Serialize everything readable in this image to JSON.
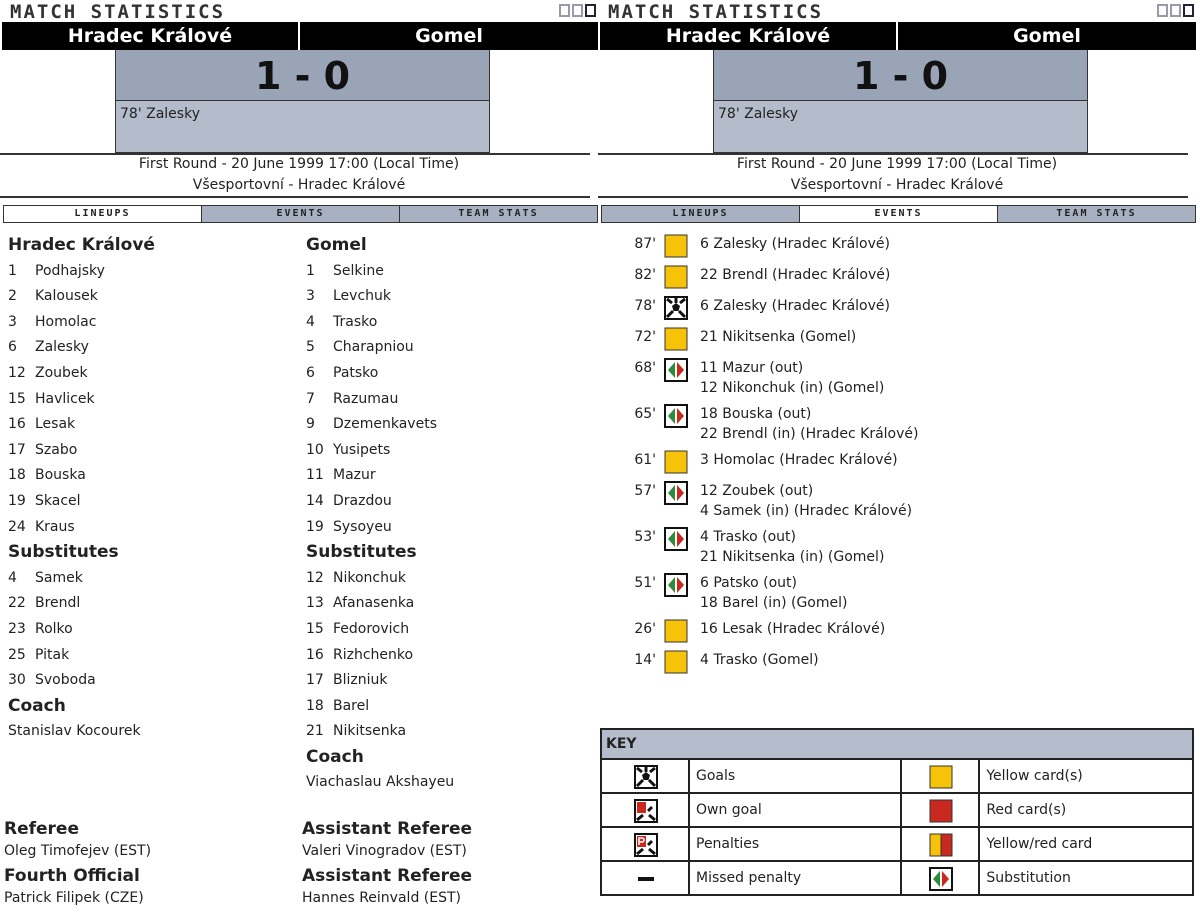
{
  "header": {
    "title": "MATCH STATISTICS",
    "home": "Hradec Králové",
    "away": "Gomel",
    "score": "1 - 0",
    "scorers": "78' Zalesky",
    "round": "First Round - 20 June 1999 17:00 (Local Time)",
    "venue": "Všesportovní - Hradec Králové"
  },
  "tabs": [
    "LINEUPS",
    "EVENTS",
    "TEAM STATS"
  ],
  "lineups": {
    "home": {
      "team": "Hradec Králové",
      "players": [
        [
          "1",
          "Podhajsky"
        ],
        [
          "2",
          "Kalousek"
        ],
        [
          "3",
          "Homolac"
        ],
        [
          "6",
          "Zalesky"
        ],
        [
          "12",
          "Zoubek"
        ],
        [
          "15",
          "Havlicek"
        ],
        [
          "16",
          "Lesak"
        ],
        [
          "17",
          "Szabo"
        ],
        [
          "18",
          "Bouska"
        ],
        [
          "19",
          "Skacel"
        ],
        [
          "24",
          "Kraus"
        ]
      ],
      "subs_label": "Substitutes",
      "subs": [
        [
          "4",
          "Samek"
        ],
        [
          "22",
          "Brendl"
        ],
        [
          "23",
          "Rolko"
        ],
        [
          "25",
          "Pitak"
        ],
        [
          "30",
          "Svoboda"
        ]
      ],
      "coach_label": "Coach",
      "coach": "Stanislav Kocourek"
    },
    "away": {
      "team": "Gomel",
      "players": [
        [
          "1",
          "Selkine"
        ],
        [
          "3",
          "Levchuk"
        ],
        [
          "4",
          "Trasko"
        ],
        [
          "5",
          "Charapniou"
        ],
        [
          "6",
          "Patsko"
        ],
        [
          "7",
          "Razumau"
        ],
        [
          "9",
          "Dzemenkavets"
        ],
        [
          "10",
          "Yusipets"
        ],
        [
          "11",
          "Mazur"
        ],
        [
          "14",
          "Drazdou"
        ],
        [
          "19",
          "Sysoyeu"
        ]
      ],
      "subs_label": "Substitutes",
      "subs": [
        [
          "12",
          "Nikonchuk"
        ],
        [
          "13",
          "Afanasenka"
        ],
        [
          "15",
          "Fedorovich"
        ],
        [
          "16",
          "Rizhchenko"
        ],
        [
          "17",
          "Blizniuk"
        ],
        [
          "18",
          "Barel"
        ],
        [
          "21",
          "Nikitsenka"
        ]
      ],
      "coach_label": "Coach",
      "coach": "Viachaslau Akshayeu"
    }
  },
  "officials": [
    {
      "role": "Referee",
      "name": "Oleg Timofejev (EST)"
    },
    {
      "role": "Assistant Referee",
      "name": "Valeri Vinogradov (EST)"
    },
    {
      "role": "Fourth Official",
      "name": "Patrick Filipek (CZE)"
    },
    {
      "role": "Assistant Referee",
      "name": "Hannes Reinvald (EST)"
    }
  ],
  "events": [
    {
      "min": "87'",
      "type": "yellow-card",
      "lines": [
        "6 Zalesky (Hradec Králové)"
      ]
    },
    {
      "min": "82'",
      "type": "yellow-card",
      "lines": [
        "22 Brendl (Hradec Králové)"
      ]
    },
    {
      "min": "78'",
      "type": "goal",
      "lines": [
        "6 Zalesky (Hradec Králové)"
      ]
    },
    {
      "min": "72'",
      "type": "yellow-card",
      "lines": [
        "21 Nikitsenka (Gomel)"
      ]
    },
    {
      "min": "68'",
      "type": "substitution",
      "lines": [
        "11 Mazur (out)",
        "12 Nikonchuk (in) (Gomel)"
      ]
    },
    {
      "min": "65'",
      "type": "substitution",
      "lines": [
        "18 Bouska (out)",
        "22 Brendl (in) (Hradec Králové)"
      ]
    },
    {
      "min": "61'",
      "type": "yellow-card",
      "lines": [
        "3 Homolac (Hradec Králové)"
      ]
    },
    {
      "min": "57'",
      "type": "substitution",
      "lines": [
        "12 Zoubek (out)",
        "4 Samek (in) (Hradec Králové)"
      ]
    },
    {
      "min": "53'",
      "type": "substitution",
      "lines": [
        "4 Trasko (out)",
        "21 Nikitsenka (in) (Gomel)"
      ]
    },
    {
      "min": "51'",
      "type": "substitution",
      "lines": [
        "6 Patsko (out)",
        "18 Barel (in) (Gomel)"
      ]
    },
    {
      "min": "26'",
      "type": "yellow-card",
      "lines": [
        "16 Lesak (Hradec Králové)"
      ]
    },
    {
      "min": "14'",
      "type": "yellow-card",
      "lines": [
        "4 Trasko (Gomel)"
      ]
    }
  ],
  "key": {
    "title": "KEY",
    "items": [
      [
        "goal",
        "Goals",
        "yellow-card",
        "Yellow card(s)"
      ],
      [
        "own-goal",
        "Own goal",
        "red-card",
        "Red card(s)"
      ],
      [
        "penalty",
        "Penalties",
        "yellow-red-card",
        "Yellow/red card"
      ],
      [
        "missed-penalty",
        "Missed penalty",
        "substitution",
        "Substitution"
      ]
    ]
  },
  "colors": {
    "yellow": "#f7c308",
    "red": "#c8281e",
    "score_bg": "#99a4b6",
    "tab_bg": "#a8b1c2"
  }
}
